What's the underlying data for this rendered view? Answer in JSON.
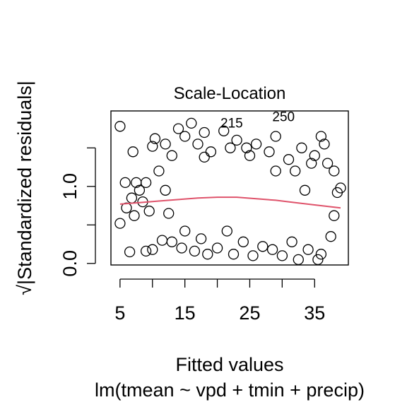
{
  "chart_data": {
    "type": "scatter",
    "title": "Scale-Location",
    "xlabel": "Fitted values",
    "sublabel": "lm(tmean ~ vpd + tmin + precip)",
    "ylabel_symbol": "√",
    "ylabel": "|Standardized residuals|",
    "xlim": [
      3.6,
      40.2
    ],
    "ylim": [
      -0.02,
      1.98
    ],
    "x_ticks": [
      5,
      10,
      15,
      20,
      25,
      30,
      35
    ],
    "x_tick_labels": [
      "5",
      "",
      "15",
      "",
      "25",
      "",
      "35"
    ],
    "y_ticks": [
      0.0,
      0.5,
      1.0,
      1.5
    ],
    "y_tick_labels": [
      "0.0",
      "",
      "1.0",
      ""
    ],
    "grid": false,
    "marker": "open-circle",
    "smoother_color": "#df536b",
    "smoother": {
      "x": [
        5,
        8,
        11,
        14,
        17,
        20,
        23,
        26,
        29,
        32,
        35,
        39
      ],
      "y": [
        0.77,
        0.79,
        0.81,
        0.83,
        0.85,
        0.86,
        0.86,
        0.84,
        0.82,
        0.79,
        0.76,
        0.72
      ]
    },
    "outliers": [
      {
        "label": "250",
        "x": 27.5,
        "y": 1.9
      },
      {
        "label": "215",
        "x": 19.5,
        "y": 1.82
      }
    ],
    "points": [
      [
        5.0,
        1.78
      ],
      [
        5.0,
        0.52
      ],
      [
        5.8,
        1.05
      ],
      [
        6.0,
        0.72
      ],
      [
        6.5,
        0.15
      ],
      [
        7.0,
        1.45
      ],
      [
        6.8,
        0.85
      ],
      [
        7.2,
        0.62
      ],
      [
        7.5,
        1.05
      ],
      [
        8.0,
        0.95
      ],
      [
        8.5,
        0.8
      ],
      [
        9.0,
        1.05
      ],
      [
        9.0,
        0.16
      ],
      [
        9.5,
        0.68
      ],
      [
        10.0,
        1.52
      ],
      [
        10.0,
        0.18
      ],
      [
        10.4,
        1.62
      ],
      [
        11.0,
        1.2
      ],
      [
        11.5,
        0.3
      ],
      [
        12.0,
        1.55
      ],
      [
        12.5,
        0.65
      ],
      [
        13.0,
        1.4
      ],
      [
        13.0,
        0.28
      ],
      [
        14.0,
        1.75
      ],
      [
        14.5,
        0.2
      ],
      [
        15.0,
        1.65
      ],
      [
        15.0,
        0.42
      ],
      [
        16.0,
        1.82
      ],
      [
        16.5,
        0.16
      ],
      [
        17.0,
        1.55
      ],
      [
        17.5,
        0.32
      ],
      [
        18.0,
        1.7
      ],
      [
        18.5,
        0.12
      ],
      [
        19.0,
        1.45
      ],
      [
        20.0,
        0.2
      ],
      [
        21.0,
        1.72
      ],
      [
        21.5,
        0.42
      ],
      [
        22.0,
        1.5
      ],
      [
        22.5,
        0.12
      ],
      [
        23.0,
        1.6
      ],
      [
        24.0,
        0.28
      ],
      [
        25.0,
        1.4
      ],
      [
        25.5,
        0.1
      ],
      [
        26.0,
        1.55
      ],
      [
        27.0,
        0.22
      ],
      [
        28.0,
        1.45
      ],
      [
        28.5,
        0.18
      ],
      [
        29.0,
        1.2
      ],
      [
        29.0,
        1.65
      ],
      [
        30.0,
        0.1
      ],
      [
        31.0,
        1.35
      ],
      [
        31.5,
        0.28
      ],
      [
        32.0,
        1.2
      ],
      [
        32.5,
        0.05
      ],
      [
        33.0,
        1.5
      ],
      [
        34.0,
        0.18
      ],
      [
        35.0,
        1.4
      ],
      [
        35.5,
        0.05
      ],
      [
        36.0,
        1.65
      ],
      [
        36.5,
        1.55
      ],
      [
        36.0,
        0.12
      ],
      [
        37.0,
        1.3
      ],
      [
        37.5,
        0.35
      ],
      [
        38.0,
        1.2
      ],
      [
        38.0,
        0.62
      ],
      [
        38.5,
        0.92
      ],
      [
        39.0,
        0.98
      ],
      [
        34.5,
        1.3
      ],
      [
        33.5,
        0.95
      ],
      [
        24.5,
        1.5
      ],
      [
        18.0,
        1.38
      ],
      [
        12.0,
        0.95
      ]
    ]
  }
}
